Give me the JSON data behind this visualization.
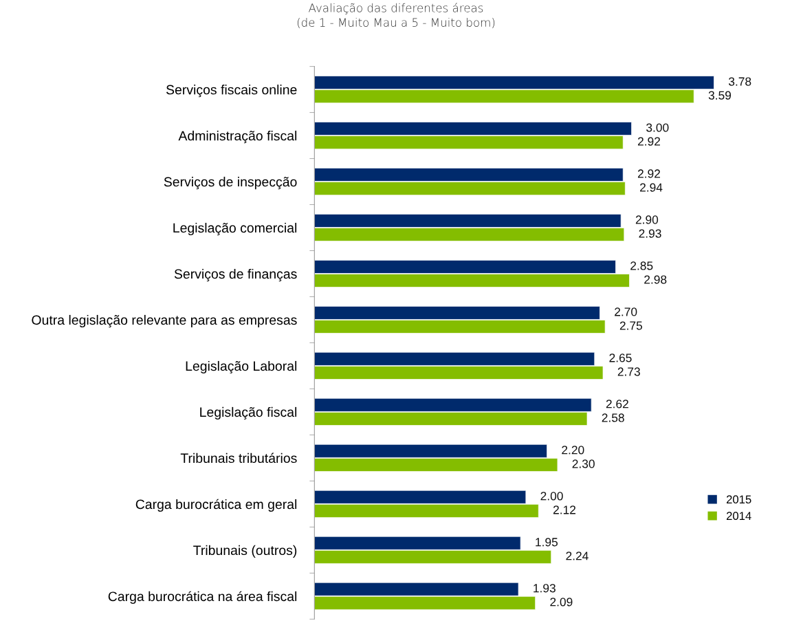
{
  "chart_data": {
    "type": "bar",
    "orientation": "horizontal",
    "title": "Avaliação das diferentes áreas\n(de 1 - Muito Mau a 5 - Muito bom)",
    "categories": [
      "Serviços fiscais online",
      "Administração fiscal",
      "Serviços de inspecção",
      "Legislação comercial",
      "Serviços de finanças",
      "Outra legislação relevante para as empresas",
      "Legislação Laboral",
      "Legislação fiscal",
      "Tribunais tributários",
      "Carga burocrática em geral",
      "Tribunais (outros)",
      "Carga burocrática na área fiscal"
    ],
    "series": [
      {
        "name": "2015",
        "color": "#002a6c",
        "values": [
          3.78,
          3.0,
          2.92,
          2.9,
          2.85,
          2.7,
          2.65,
          2.62,
          2.2,
          2.0,
          1.95,
          1.93
        ],
        "value_labels": [
          "3.78",
          "3.00",
          "2.92",
          "2.90",
          "2.85",
          "2.70",
          "2.65",
          "2.62",
          "2.20",
          "2.00",
          "1.95",
          "1.93"
        ]
      },
      {
        "name": "2014",
        "color": "#84bd00",
        "values": [
          3.59,
          2.92,
          2.94,
          2.93,
          2.98,
          2.75,
          2.73,
          2.58,
          2.3,
          2.12,
          2.24,
          2.09
        ],
        "value_labels": [
          "3.59",
          "2.92",
          "2.94",
          "2.93",
          "2.98",
          "2.75",
          "2.73",
          "2.58",
          "2.30",
          "2.12",
          "2.24",
          "2.09"
        ]
      }
    ],
    "legend": "center right",
    "grid": false
  }
}
